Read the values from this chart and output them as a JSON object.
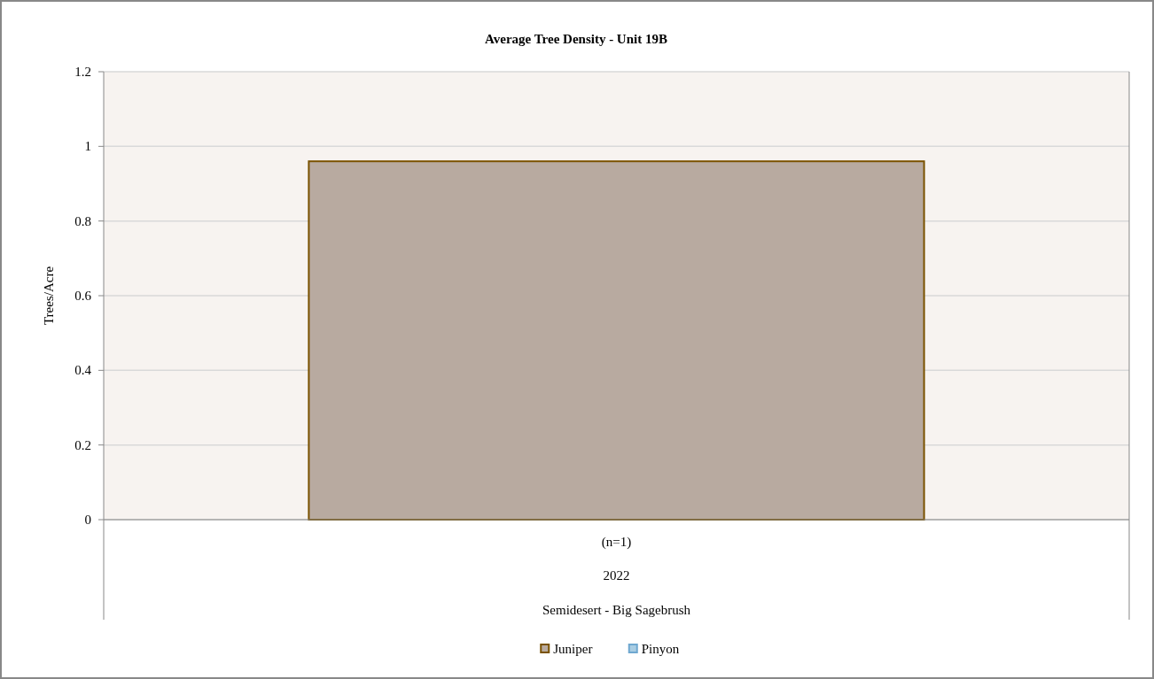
{
  "chart_data": {
    "type": "bar",
    "title": "Average Tree Density - Unit 19B",
    "ylabel": "Trees/Acre",
    "categories": [
      "(n=1)"
    ],
    "annotations": [
      "2022",
      "Semidesert - Big Sagebrush"
    ],
    "stacked": true,
    "series": [
      {
        "name": "Juniper",
        "color": "#b8aaa0",
        "values": [
          0.96
        ]
      },
      {
        "name": "Pinyon",
        "color": "#a9cde3",
        "values": [
          0
        ]
      }
    ],
    "ylim": [
      0,
      1.2
    ],
    "yticks": [
      0,
      0.2,
      0.4,
      0.6,
      0.8,
      1,
      1.2
    ],
    "grid": "y",
    "legend": "bottom"
  }
}
